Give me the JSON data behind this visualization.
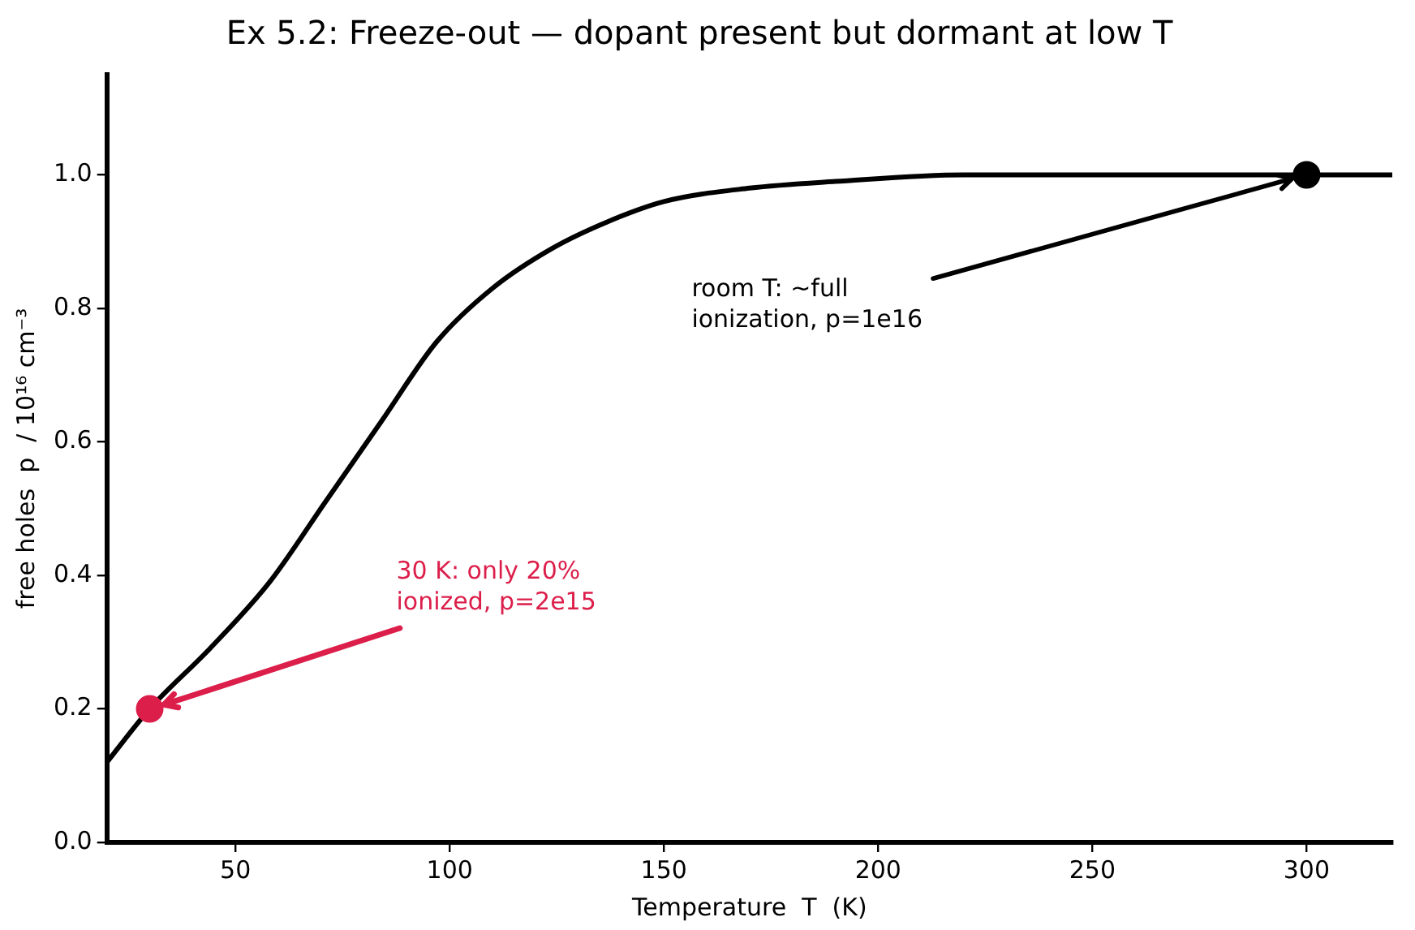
{
  "chart_data": {
    "type": "line",
    "title": "Ex 5.2: Freeze-out — dopant present but dormant at low T",
    "xlabel": "Temperature  T  (K)",
    "ylabel": "free holes  p  / 10¹⁶ cm⁻³",
    "xlim": [
      20,
      320
    ],
    "xticks": [
      50,
      100,
      150,
      200,
      250,
      300
    ],
    "ylim": [
      0,
      1.15
    ],
    "yticks": [
      {
        "value": 0,
        "label": "0.0"
      },
      0.2,
      0.4,
      0.6,
      0.8,
      {
        "value": 1,
        "label": "1.0"
      }
    ],
    "grid": false,
    "legend": false,
    "series": [
      {
        "type": "line",
        "color": "#000000",
        "marker": "none",
        "x": [
          20,
          30,
          44,
          58,
          71,
          84,
          97,
          110,
          124,
          137,
          150,
          170,
          190,
          220,
          260,
          320
        ],
        "values": [
          0.12,
          0.2,
          0.29,
          0.39,
          0.51,
          0.63,
          0.75,
          0.83,
          0.89,
          0.93,
          0.96,
          0.98,
          0.99,
          1.0,
          1.0,
          1.0
        ]
      },
      {
        "type": "scatter",
        "marker": "circle",
        "x": [
          30,
          300
        ],
        "values": [
          0.2,
          1.0
        ],
        "colors": [
          "#dc1e4a",
          "#000000"
        ]
      }
    ],
    "annotations": [
      {
        "text": "30 K: only 20%\nionized, p=2e15",
        "x": 30,
        "y": 0.2
      },
      {
        "text": "room T: ~full\nionization, p=1e16",
        "x": 300,
        "y": 1.0
      }
    ]
  }
}
